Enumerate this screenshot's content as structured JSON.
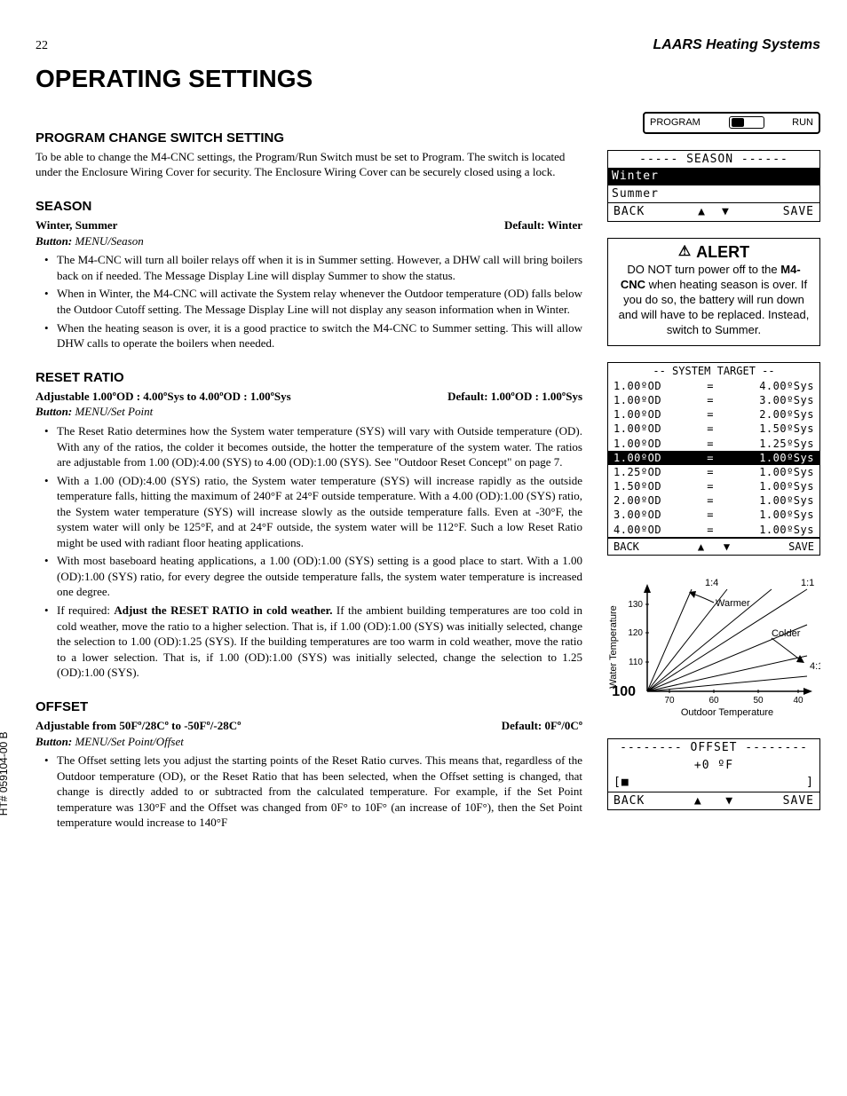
{
  "header": {
    "page_number": "22",
    "company": "LAARS Heating Systems",
    "title": "Operating Settings"
  },
  "footer": {
    "tag": "HT# 059104-00 B"
  },
  "switch": {
    "left": "PROGRAM",
    "right": "RUN"
  },
  "sections": {
    "program_switch": {
      "heading": "PROGRAM CHANGE SWITCH SETTING",
      "body": "To be able to change the M4-CNC settings, the Program/Run Switch must be set to Program. The switch is located under the Enclosure Wiring Cover for security. The Enclosure Wiring Cover can be securely closed using a lock."
    },
    "season": {
      "heading": "SEASON",
      "sub_left": "Winter, Summer",
      "sub_right": "Default: Winter",
      "button": "MENU/Season",
      "bullets": [
        "The M4-CNC will turn all boiler relays off when it is in Summer setting. However, a DHW call will bring boilers back on if needed. The Message Display Line will display Summer to show the status.",
        "When in Winter, the M4-CNC will activate the System relay whenever the Outdoor temperature (OD) falls below the Outdoor Cutoff setting. The Message Display Line will not display any season information when in Winter.",
        "When the heating season is over, it is a good practice to switch the M4-CNC to Summer setting. This will allow DHW calls to operate the boilers when needed."
      ]
    },
    "reset_ratio": {
      "heading": "RESET RATIO",
      "sub_left": "Adjustable 1.00ºOD : 4.00ºSys  to  4.00ºOD : 1.00ºSys",
      "sub_right": "Default: 1.00ºOD : 1.00ºSys",
      "button": "MENU/Set Point",
      "bullets": [
        "The Reset Ratio determines how the System water temperature (SYS) will vary with Outside temperature (OD). With any of the ratios, the colder it becomes outside, the hotter the temperature of the system water. The ratios are adjustable from 1.00 (OD):4.00 (SYS) to 4.00 (OD):1.00 (SYS). See \"Outdoor Reset Concept\" on page 7.",
        "With a 1.00 (OD):4.00 (SYS) ratio, the System water temperature (SYS) will increase rapidly as the outside temperature falls, hitting the maximum of 240°F at 24°F outside temperature. With a 4.00 (OD):1.00 (SYS) ratio, the System water temperature (SYS) will increase slowly as the outside temperature falls. Even at -30°F, the system water will only be 125°F, and at 24°F outside, the system water will be 112°F. Such a low Reset Ratio might be used with radiant floor heating applications.",
        "With most baseboard heating applications, a 1.00 (OD):1.00 (SYS) setting is a good place to start. With a 1.00 (OD):1.00 (SYS) ratio, for every degree the outside temperature falls, the system water temperature is increased one degree."
      ],
      "bullet4_pre": "If required: ",
      "bullet4_bold": "Adjust the RESET RATIO in cold weather.",
      "bullet4_post": "  If the ambient building temperatures are too cold in cold weather, move the ratio to a higher selection. That is, if 1.00 (OD):1.00 (SYS) was initially selected, change the selection to 1.00 (OD):1.25 (SYS). If the building temperatures are too warm in cold weather, move the ratio to a lower selection. That is, if 1.00 (OD):1.00 (SYS) was initially selected, change the selection to 1.25 (OD):1.00 (SYS)."
    },
    "offset": {
      "heading": "OFFSET",
      "sub_left": "Adjustable from 50Fº/28Cº to -50Fº/-28Cº",
      "sub_right": "Default: 0Fº/0Cº",
      "button": "MENU/Set Point/Offset",
      "bullets": [
        "The Offset setting lets you adjust the starting points of the Reset Ratio curves. This means that, regardless of the Outdoor temperature (OD), or the Reset Ratio that has been selected, when the Offset setting is changed, that change is directly added to or subtracted from the calculated temperature. For example, if the Set Point temperature was 130°F and the Offset was changed from 0F° to 10F° (an increase of 10F°), then the Set Point temperature would increase to 140°F"
      ]
    }
  },
  "lcd_season": {
    "title": "----- SEASON ------",
    "row1": "Winter",
    "row2": "Summer",
    "back": "BACK",
    "save": "SAVE",
    "up": "▲",
    "down": "▼"
  },
  "alert": {
    "head": "ALERT",
    "body_pre": "DO NOT turn power off to the ",
    "body_bold": "M4-CNC",
    "body_post": " when heating season is over. If you do so, the battery will run down and will have to be replaced. Instead, switch to Summer."
  },
  "system_target": {
    "title": "-- SYSTEM  TARGET --",
    "rows_top": [
      [
        "1.00ºOD",
        "=",
        "4.00ºSys"
      ],
      [
        "1.00ºOD",
        "=",
        "3.00ºSys"
      ],
      [
        "1.00ºOD",
        "=",
        "2.00ºSys"
      ],
      [
        "1.00ºOD",
        "=",
        "1.50ºSys"
      ],
      [
        "1.00ºOD",
        "=",
        "1.25ºSys"
      ]
    ],
    "row_sel": [
      "1.00ºOD",
      "=",
      "1.00ºSys"
    ],
    "rows_bot": [
      [
        "1.25ºOD",
        "=",
        "1.00ºSys"
      ],
      [
        "1.50ºOD",
        "=",
        "1.00ºSys"
      ],
      [
        "2.00ºOD",
        "=",
        "1.00ºSys"
      ],
      [
        "3.00ºOD",
        "=",
        "1.00ºSys"
      ],
      [
        "4.00ºOD",
        "=",
        "1.00ºSys"
      ]
    ],
    "back": "BACK",
    "save": "SAVE",
    "up": "▲",
    "down": "▼"
  },
  "chart": {
    "ylabel": "Water Temperature",
    "xlabel": "Outdoor Temperature",
    "yticks": [
      100,
      110,
      120,
      130
    ],
    "xticks": [
      70,
      60,
      50,
      40
    ],
    "label_14": "1:4",
    "label_11": "1:1",
    "label_41": "4:1",
    "label_warmer": "Warmer",
    "label_colder": "Colder",
    "origin_label": "100",
    "colors": {
      "axis": "#000",
      "line": "#000"
    }
  },
  "lcd_offset": {
    "title": "-------- OFFSET --------",
    "value": "+0 ºF",
    "bar_left": "[■",
    "bar_right": "]",
    "back": "BACK",
    "save": "SAVE",
    "up": "▲",
    "down": "▼"
  }
}
